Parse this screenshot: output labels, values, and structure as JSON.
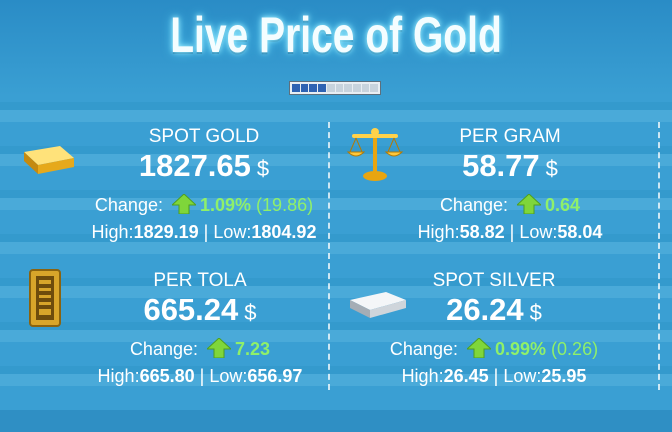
{
  "header": {
    "title": "Live Price of Gold"
  },
  "labels": {
    "change": "Change:",
    "high": "High:",
    "low": "Low:",
    "separator": "|"
  },
  "cards": [
    {
      "name": "SPOT GOLD",
      "price": "1827.65",
      "unit": "$",
      "change_pct": "1.09%",
      "change_abs": "(19.86)",
      "high": "1829.19",
      "low": "1804.92",
      "icon": "gold-bar-icon",
      "trend": "up"
    },
    {
      "name": "PER GRAM",
      "price": "58.77",
      "unit": "$",
      "change_pct": "0.64",
      "change_abs": "",
      "high": "58.82",
      "low": "58.04",
      "icon": "balance-scale-icon",
      "trend": "up"
    },
    {
      "name": "PER TOLA",
      "price": "665.24",
      "unit": "$",
      "change_pct": "7.23",
      "change_abs": "",
      "high": "665.80",
      "low": "656.97",
      "icon": "tola-bar-icon",
      "trend": "up"
    },
    {
      "name": "SPOT SILVER",
      "price": "26.24",
      "unit": "$",
      "change_pct": "0.99%",
      "change_abs": "(0.26)",
      "high": "26.45",
      "low": "25.95",
      "icon": "silver-bar-icon",
      "trend": "up"
    }
  ],
  "colors": {
    "background": "#3a9fd3",
    "up": "#8ff06a",
    "text": "#ffffff"
  }
}
